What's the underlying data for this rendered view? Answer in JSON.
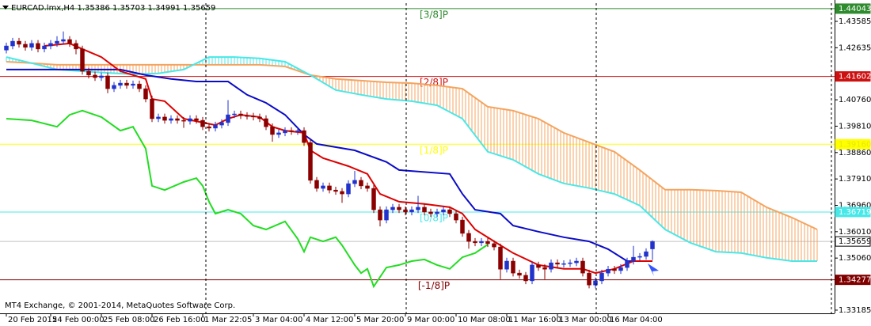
{
  "chart_data": {
    "type": "candlestick",
    "title": "EURCAD.lmx,H4  1.35386 1.35703 1.34991 1.35659",
    "footer": "MT4 Exchange, © 2001-2014, MetaQuotes Software Corp.",
    "xlim": [
      -1,
      130.75
    ],
    "ylim": [
      1.3307,
      1.4424
    ],
    "xticks": [
      {
        "value": 0,
        "label": "20 Feb 2015"
      },
      {
        "value": 7,
        "label": "24 Feb 00:00"
      },
      {
        "value": 15,
        "label": "25 Feb 08:00"
      },
      {
        "value": 23,
        "label": "26 Feb 16:00"
      },
      {
        "value": 31,
        "label": "1 Mar 22:05"
      },
      {
        "value": 39,
        "label": "3 Mar 04:00"
      },
      {
        "value": 47,
        "label": "4 Mar 12:00"
      },
      {
        "value": 55,
        "label": "5 Mar 20:00"
      },
      {
        "value": 63,
        "label": "9 Mar 00:00"
      },
      {
        "value": 71,
        "label": "10 Mar 08:00"
      },
      {
        "value": 79,
        "label": "11 Mar 16:00"
      },
      {
        "value": 87,
        "label": "13 Mar 00:00"
      },
      {
        "value": 95,
        "label": "16 Mar 04:00"
      }
    ],
    "yticks": [
      1.43585,
      1.42635,
      {
        "value": 1.4076,
        "label": "1.40760"
      },
      {
        "value": 1.3981,
        "label": "1.39810"
      },
      {
        "value": 1.3886,
        "label": "1.38860"
      },
      {
        "value": 1.3791,
        "label": "1.37910"
      },
      {
        "value": 1.3696,
        "label": "1.36960"
      },
      {
        "value": 1.3601,
        "label": "1.36010"
      },
      {
        "value": 1.3506,
        "label": "1.35060"
      },
      1.33185
    ],
    "up_color": "#2233cc",
    "down_color": "#8b0000",
    "open": [
      1.4255,
      1.427,
      1.4287,
      1.4276,
      1.4265,
      1.4279,
      1.4259,
      1.427,
      1.4279,
      1.4287,
      1.4293,
      1.4279,
      1.4259,
      1.4179,
      1.4165,
      1.4156,
      1.4162,
      1.4116,
      1.4128,
      1.4136,
      1.4128,
      1.4133,
      1.4116,
      1.4079,
      1.4008,
      1.4014,
      1.4002,
      1.4008,
      1.4002,
      1.3999,
      1.4008,
      1.4002,
      1.3979,
      1.3974,
      1.3985,
      1.3994,
      1.4022,
      1.4025,
      1.4019,
      1.4017,
      1.4014,
      1.4008,
      1.3979,
      1.3951,
      1.3957,
      1.3965,
      1.3962,
      1.3965,
      1.3922,
      1.3786,
      1.3757,
      1.3766,
      1.3751,
      1.3746,
      1.3737,
      1.3774,
      1.3786,
      1.3766,
      1.3757,
      1.368,
      1.3643,
      1.368,
      1.3689,
      1.368,
      1.3672,
      1.368,
      1.3689,
      1.3672,
      1.3666,
      1.3672,
      1.368,
      1.3666,
      1.3643,
      1.3595,
      1.3566,
      1.3561,
      1.3566,
      1.3558,
      1.3546,
      1.3466,
      1.3495,
      1.3452,
      1.3444,
      1.3424,
      1.3481,
      1.3472,
      1.3466,
      1.3489,
      1.3484,
      1.3486,
      1.3489,
      1.3495,
      1.3452,
      1.3409,
      1.3424,
      1.3452,
      1.3466,
      1.3461,
      1.3472,
      1.3495,
      1.3509,
      1.3512,
      1.3539
    ],
    "high": [
      1.4282,
      1.4299,
      1.4299,
      1.4288,
      1.4291,
      1.4291,
      1.4282,
      1.4291,
      1.4305,
      1.4322,
      1.4305,
      1.4291,
      1.4271,
      1.4191,
      1.4177,
      1.4174,
      1.4174,
      1.414,
      1.4148,
      1.4148,
      1.4145,
      1.4145,
      1.4128,
      1.4091,
      1.4026,
      1.4026,
      1.402,
      1.402,
      1.4014,
      1.402,
      1.402,
      1.4014,
      1.3991,
      1.3997,
      1.4006,
      1.4075,
      1.4037,
      1.4037,
      1.4031,
      1.4029,
      1.4026,
      1.402,
      1.3991,
      1.3969,
      1.3977,
      1.3977,
      1.3977,
      1.3977,
      1.3934,
      1.3798,
      1.3778,
      1.3778,
      1.3763,
      1.3758,
      1.3786,
      1.382,
      1.3798,
      1.3778,
      1.3769,
      1.3692,
      1.3692,
      1.3701,
      1.3701,
      1.3692,
      1.3692,
      1.373,
      1.3701,
      1.3684,
      1.3684,
      1.3692,
      1.3692,
      1.3678,
      1.3655,
      1.3607,
      1.3578,
      1.3578,
      1.3578,
      1.357,
      1.3558,
      1.3507,
      1.3507,
      1.3464,
      1.3456,
      1.3493,
      1.3493,
      1.3484,
      1.3501,
      1.3501,
      1.3498,
      1.3501,
      1.3507,
      1.3507,
      1.3464,
      1.3436,
      1.3464,
      1.3478,
      1.3478,
      1.3484,
      1.3507,
      1.355,
      1.3524,
      1.3541,
      1.357
    ],
    "low": [
      1.4243,
      1.4258,
      1.4264,
      1.4253,
      1.4253,
      1.4247,
      1.4247,
      1.4258,
      1.4267,
      1.4275,
      1.4267,
      1.424,
      1.4167,
      1.4153,
      1.4144,
      1.4144,
      1.41,
      1.4104,
      1.4116,
      1.4116,
      1.4116,
      1.4104,
      1.4067,
      1.3996,
      1.3996,
      1.399,
      1.399,
      1.399,
      1.3975,
      1.3987,
      1.399,
      1.3967,
      1.3962,
      1.3962,
      1.3973,
      1.3982,
      1.401,
      1.4007,
      1.4005,
      1.4002,
      1.3996,
      1.3967,
      1.3925,
      1.3939,
      1.3945,
      1.395,
      1.395,
      1.391,
      1.3774,
      1.3745,
      1.3745,
      1.3739,
      1.3734,
      1.3705,
      1.3725,
      1.3762,
      1.3754,
      1.3745,
      1.3668,
      1.362,
      1.3631,
      1.3668,
      1.3668,
      1.366,
      1.366,
      1.3668,
      1.366,
      1.3654,
      1.3654,
      1.366,
      1.3654,
      1.3631,
      1.3583,
      1.354,
      1.3549,
      1.3549,
      1.3546,
      1.3534,
      1.343,
      1.3454,
      1.344,
      1.3432,
      1.3412,
      1.3412,
      1.346,
      1.343,
      1.3454,
      1.3472,
      1.3472,
      1.3474,
      1.3477,
      1.344,
      1.3397,
      1.3397,
      1.3412,
      1.344,
      1.3449,
      1.3449,
      1.346,
      1.3483,
      1.3497,
      1.35,
      1.3499
    ],
    "close": [
      1.427,
      1.4287,
      1.4276,
      1.4265,
      1.4279,
      1.4259,
      1.427,
      1.4279,
      1.4287,
      1.4293,
      1.4279,
      1.4259,
      1.4179,
      1.4165,
      1.4156,
      1.4162,
      1.4116,
      1.4128,
      1.4136,
      1.4128,
      1.4133,
      1.4116,
      1.4079,
      1.4008,
      1.4014,
      1.4002,
      1.4008,
      1.4002,
      1.3999,
      1.4008,
      1.4002,
      1.3979,
      1.3974,
      1.3985,
      1.3994,
      1.4022,
      1.4025,
      1.4019,
      1.4017,
      1.4014,
      1.4008,
      1.3979,
      1.3951,
      1.3957,
      1.3965,
      1.3962,
      1.3965,
      1.3922,
      1.3786,
      1.3757,
      1.3766,
      1.3751,
      1.3746,
      1.3737,
      1.3774,
      1.3786,
      1.3766,
      1.3757,
      1.368,
      1.3643,
      1.368,
      1.3689,
      1.368,
      1.3672,
      1.368,
      1.3689,
      1.3672,
      1.3666,
      1.3672,
      1.368,
      1.3666,
      1.3643,
      1.3595,
      1.3566,
      1.3561,
      1.3566,
      1.3558,
      1.3546,
      1.3466,
      1.3495,
      1.3452,
      1.3444,
      1.3424,
      1.3481,
      1.3472,
      1.3466,
      1.3489,
      1.3484,
      1.3486,
      1.3489,
      1.3495,
      1.3452,
      1.3409,
      1.3424,
      1.3452,
      1.3466,
      1.3461,
      1.3472,
      1.3495,
      1.3509,
      1.3512,
      1.3529,
      1.3566
    ],
    "series": [
      {
        "type": "span",
        "color": "#f4a460",
        "x": [
          0,
          4,
          8,
          12,
          16,
          20,
          24,
          28,
          32,
          36,
          40,
          44,
          48,
          52,
          56,
          60,
          64,
          68,
          72,
          76,
          80,
          84,
          88,
          92,
          96,
          100,
          104,
          108,
          112,
          116,
          120,
          124,
          128
        ],
        "values": [
          1.4213,
          1.4208,
          1.4202,
          1.4202,
          1.4202,
          1.4202,
          1.4202,
          1.4202,
          1.4202,
          1.4202,
          1.4202,
          1.4196,
          1.4165,
          1.4151,
          1.4145,
          1.4139,
          1.4136,
          1.4128,
          1.4116,
          1.4051,
          1.4037,
          1.4008,
          1.3957,
          1.3923,
          1.3889,
          1.3823,
          1.3752,
          1.3752,
          1.3749,
          1.3743,
          1.3689,
          1.3652,
          1.3609
        ]
      },
      {
        "type": "span",
        "color": "#48e8e8",
        "x": [
          0,
          4,
          8,
          12,
          16,
          20,
          24,
          28,
          32,
          36,
          40,
          44,
          48,
          52,
          56,
          60,
          64,
          68,
          72,
          76,
          80,
          84,
          88,
          92,
          96,
          100,
          104,
          108,
          112,
          116,
          120,
          124,
          128
        ],
        "values": [
          1.423,
          1.4208,
          1.4185,
          1.4179,
          1.4173,
          1.4168,
          1.4171,
          1.4185,
          1.423,
          1.423,
          1.4225,
          1.4213,
          1.4165,
          1.4111,
          1.4094,
          1.4079,
          1.4071,
          1.4056,
          1.4008,
          1.3889,
          1.386,
          1.3809,
          1.3775,
          1.3758,
          1.3737,
          1.3695,
          1.3609,
          1.3561,
          1.3529,
          1.3524,
          1.3507,
          1.3495,
          1.3495
        ]
      },
      {
        "type": "line",
        "color": "#22dd22",
        "x": [
          0,
          4,
          8,
          10,
          12,
          15,
          18,
          20,
          22,
          23,
          25,
          28,
          30,
          31,
          32,
          33,
          35,
          37,
          39,
          41,
          44,
          46,
          47,
          48,
          50,
          52,
          53,
          55,
          56,
          57,
          58,
          60,
          62,
          64,
          66,
          68,
          70,
          72,
          74,
          76
        ],
        "values": [
          1.4008,
          1.4002,
          1.3979,
          1.4022,
          1.4037,
          1.4014,
          1.3965,
          1.3979,
          1.39,
          1.3766,
          1.3751,
          1.378,
          1.3794,
          1.3766,
          1.3709,
          1.3666,
          1.368,
          1.3666,
          1.3623,
          1.3609,
          1.3638,
          1.3575,
          1.3529,
          1.3581,
          1.3566,
          1.3581,
          1.3552,
          1.3481,
          1.3452,
          1.3467,
          1.3404,
          1.3472,
          1.3481,
          1.3495,
          1.3501,
          1.3481,
          1.3467,
          1.3509,
          1.3524,
          1.3555
        ]
      },
      {
        "type": "line",
        "color": "#0a0ac8",
        "x": [
          0,
          12,
          18,
          22,
          26,
          30,
          35,
          38,
          41,
          44,
          47,
          49,
          55,
          60,
          62,
          70,
          72,
          74,
          78,
          80,
          84,
          88,
          92,
          95,
          98,
          100,
          102
        ],
        "values": [
          1.4185,
          1.4185,
          1.4185,
          1.4165,
          1.4151,
          1.4142,
          1.4142,
          1.4094,
          1.4065,
          1.4022,
          1.3951,
          1.3917,
          1.3894,
          1.3852,
          1.3823,
          1.3809,
          1.3737,
          1.368,
          1.3666,
          1.3623,
          1.3601,
          1.3581,
          1.3566,
          1.3538,
          1.3495,
          1.3495,
          1.3495
        ]
      },
      {
        "type": "line",
        "color": "#dd0000",
        "x": [
          6,
          10,
          12,
          15,
          18,
          22,
          23,
          25,
          28,
          31,
          33,
          35,
          37,
          40,
          42,
          44,
          47,
          48,
          50,
          54,
          57,
          59,
          62,
          66,
          70,
          72,
          74,
          78,
          80,
          84,
          88,
          91,
          93,
          96,
          99,
          102
        ],
        "values": [
          1.427,
          1.4279,
          1.4259,
          1.423,
          1.4179,
          1.4151,
          1.4079,
          1.4071,
          1.4008,
          1.3994,
          1.3985,
          1.4008,
          1.4022,
          1.4014,
          1.3979,
          1.3965,
          1.3957,
          1.3894,
          1.3866,
          1.3837,
          1.3809,
          1.3737,
          1.3709,
          1.3701,
          1.3689,
          1.3666,
          1.3609,
          1.3552,
          1.3524,
          1.3481,
          1.3467,
          1.3467,
          1.3452,
          1.3467,
          1.3495,
          1.3495
        ]
      }
    ],
    "levels": {
      "labels": [
        "[3/8]P",
        "[2/8]P",
        "[1/8]P",
        "[0/8]P",
        "[-1/8]P"
      ],
      "values": [
        1.44043,
        1.41602,
        1.3916,
        1.36719,
        1.34277
      ],
      "value_labels": [
        "1.44043",
        "1.41602",
        "1.39160",
        "1.36719",
        "1.34277"
      ],
      "colors": [
        "#2e8b2e",
        "#cc1111",
        "#ffff00",
        "#48e8e8",
        "#800000"
      ],
      "tag_text_colors": [
        "#ffffff",
        "#ffffff",
        "#e8e800",
        "#ffffff",
        "#ffffff"
      ]
    },
    "last_price": 1.35659,
    "last_price_color": "#c0c0c0"
  }
}
